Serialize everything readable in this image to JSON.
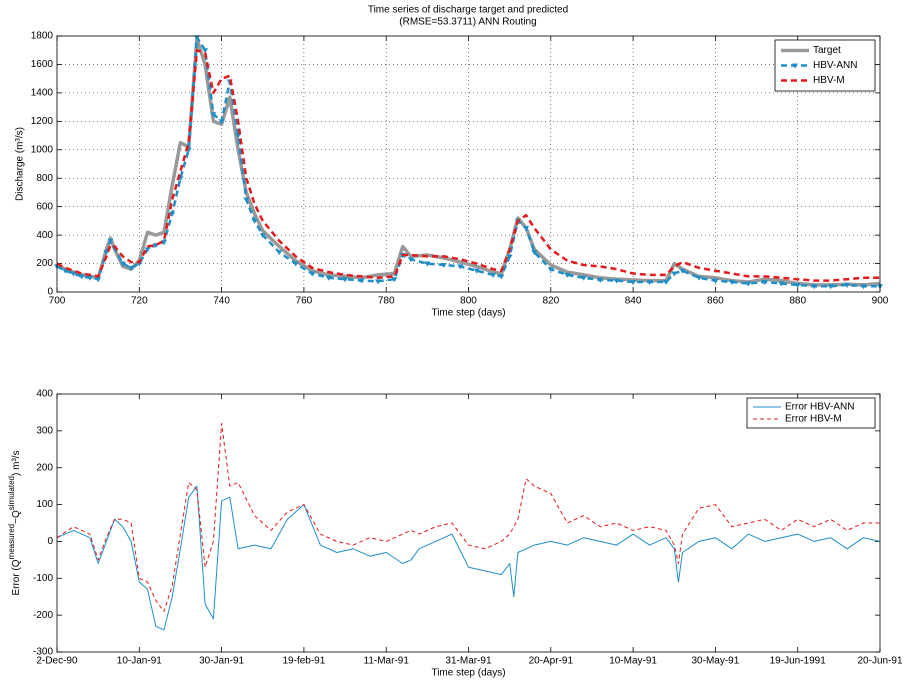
{
  "chart_data": [
    {
      "type": "line",
      "title": "Time series of discharge target and predicted",
      "subtitle": "(RMSE=53.3711) ANN Routing",
      "xlabel": "Time step (days)",
      "ylabel": "Discharge (m³/s)",
      "x": [
        700,
        702,
        704,
        706,
        708,
        710,
        712,
        713,
        714,
        716,
        718,
        720,
        722,
        724,
        726,
        728,
        730,
        732,
        734,
        736,
        738,
        740,
        742,
        744,
        746,
        748,
        750,
        754,
        758,
        762,
        766,
        770,
        774,
        778,
        782,
        784,
        786,
        790,
        794,
        798,
        802,
        806,
        808,
        810,
        812,
        814,
        816,
        820,
        824,
        828,
        832,
        836,
        840,
        844,
        848,
        850,
        852,
        856,
        860,
        864,
        868,
        872,
        876,
        880,
        884,
        888,
        892,
        896,
        900
      ],
      "series": [
        {
          "name": "Target",
          "color": "#999999",
          "style": "solid",
          "linewidth": 3.5,
          "values": [
            190,
            160,
            140,
            120,
            110,
            100,
            300,
            380,
            300,
            180,
            160,
            220,
            420,
            400,
            420,
            750,
            1050,
            1020,
            1780,
            1600,
            1200,
            1180,
            1370,
            1000,
            700,
            550,
            430,
            320,
            220,
            150,
            120,
            110,
            100,
            120,
            130,
            320,
            250,
            260,
            240,
            210,
            180,
            140,
            130,
            300,
            520,
            450,
            300,
            190,
            140,
            120,
            100,
            90,
            85,
            80,
            80,
            200,
            160,
            110,
            100,
            80,
            70,
            90,
            80,
            60,
            50,
            50,
            55,
            50,
            60
          ]
        },
        {
          "name": "HBV-ANN",
          "color": "#1f8fc8",
          "style": "dashed",
          "linewidth": 2.5,
          "marker": "triangle-down",
          "values": [
            180,
            150,
            130,
            110,
            100,
            90,
            280,
            360,
            310,
            200,
            170,
            200,
            300,
            330,
            350,
            550,
            800,
            1000,
            1790,
            1700,
            1250,
            1200,
            1480,
            1100,
            650,
            500,
            400,
            280,
            200,
            130,
            100,
            90,
            80,
            75,
            90,
            260,
            230,
            200,
            190,
            180,
            150,
            120,
            110,
            250,
            500,
            450,
            280,
            160,
            120,
            100,
            85,
            80,
            70,
            70,
            70,
            130,
            150,
            100,
            80,
            70,
            60,
            70,
            60,
            50,
            40,
            40,
            50,
            40,
            40
          ]
        },
        {
          "name": "HBV-M",
          "color": "#e41a1c",
          "style": "dashed",
          "linewidth": 2.5,
          "values": [
            200,
            170,
            150,
            130,
            120,
            110,
            250,
            330,
            320,
            250,
            210,
            210,
            320,
            330,
            360,
            650,
            850,
            1050,
            1700,
            1680,
            1400,
            1500,
            1520,
            1200,
            800,
            620,
            500,
            360,
            250,
            170,
            140,
            120,
            110,
            100,
            110,
            260,
            260,
            250,
            250,
            230,
            200,
            160,
            150,
            300,
            500,
            540,
            450,
            300,
            220,
            190,
            180,
            160,
            130,
            120,
            120,
            180,
            210,
            170,
            150,
            130,
            110,
            110,
            100,
            90,
            80,
            80,
            90,
            100,
            100
          ]
        }
      ],
      "xlim": [
        700,
        900
      ],
      "xticks": [
        700,
        720,
        740,
        760,
        780,
        800,
        820,
        840,
        860,
        880,
        900
      ],
      "ylim": [
        0,
        1800
      ],
      "yticks": [
        0,
        200,
        400,
        600,
        800,
        1000,
        1200,
        1400,
        1600,
        1800
      ],
      "grid": true,
      "legend": "upper right"
    },
    {
      "type": "line",
      "xlabel": "Time step (days)",
      "ylabel": [
        "Error (Q",
        "measured",
        "−Q",
        "simulated",
        ") m³/s"
      ],
      "x": [
        700,
        704,
        708,
        710,
        712,
        714,
        716,
        718,
        720,
        722,
        724,
        726,
        728,
        730,
        732,
        734,
        736,
        738,
        740,
        742,
        744,
        748,
        752,
        756,
        760,
        764,
        768,
        772,
        776,
        780,
        784,
        786,
        788,
        792,
        796,
        800,
        804,
        808,
        810,
        811,
        812,
        814,
        816,
        820,
        824,
        828,
        832,
        836,
        840,
        844,
        848,
        850,
        851,
        852,
        856,
        860,
        864,
        868,
        872,
        876,
        880,
        884,
        888,
        892,
        896,
        900
      ],
      "series": [
        {
          "name": "Error HBV-ANN",
          "color": "#1f8fc8",
          "style": "solid",
          "linewidth": 1,
          "values": [
            10,
            30,
            10,
            -60,
            0,
            60,
            40,
            0,
            -110,
            -130,
            -230,
            -240,
            -150,
            -20,
            120,
            150,
            -170,
            -210,
            110,
            120,
            -20,
            -10,
            -20,
            60,
            100,
            -10,
            -30,
            -20,
            -40,
            -30,
            -60,
            -50,
            -20,
            0,
            20,
            -70,
            -80,
            -90,
            -60,
            -150,
            -30,
            -20,
            -10,
            0,
            -10,
            10,
            0,
            -10,
            20,
            -10,
            10,
            -20,
            -110,
            -30,
            0,
            10,
            -20,
            20,
            0,
            10,
            20,
            0,
            10,
            -20,
            10,
            0
          ]
        },
        {
          "name": "Error HBV-M",
          "color": "#e41a1c",
          "style": "dashed",
          "linewidth": 1,
          "values": [
            10,
            40,
            20,
            -50,
            10,
            60,
            60,
            50,
            -100,
            -110,
            -160,
            -190,
            -120,
            20,
            160,
            140,
            -70,
            0,
            320,
            150,
            160,
            70,
            30,
            80,
            100,
            20,
            0,
            -10,
            10,
            0,
            20,
            30,
            20,
            40,
            50,
            -10,
            -20,
            0,
            20,
            40,
            60,
            170,
            150,
            130,
            50,
            70,
            40,
            50,
            30,
            40,
            30,
            -10,
            -60,
            20,
            90,
            100,
            40,
            50,
            60,
            30,
            60,
            40,
            60,
            30,
            50,
            50
          ]
        }
      ],
      "xlim": [
        700,
        900
      ],
      "xticks": [
        {
          "value": 700,
          "label": "2-Dec-90"
        },
        {
          "value": 720,
          "label": "10-Jan-91"
        },
        {
          "value": 740,
          "label": "30-Jan-91"
        },
        {
          "value": 760,
          "label": "19-feb-91"
        },
        {
          "value": 780,
          "label": "11-Mar-91"
        },
        {
          "value": 800,
          "label": "31-Mar-91"
        },
        {
          "value": 820,
          "label": "20-Apr-91"
        },
        {
          "value": 840,
          "label": "10-May-91"
        },
        {
          "value": 860,
          "label": "30-May-91"
        },
        {
          "value": 880,
          "label": "19-Jun-1991"
        },
        {
          "value": 900,
          "label": "20-Jun-91"
        }
      ],
      "ylim": [
        -300,
        400
      ],
      "yticks": [
        -300,
        -200,
        -100,
        0,
        100,
        200,
        300,
        400
      ],
      "grid": false,
      "legend": "upper right"
    }
  ]
}
